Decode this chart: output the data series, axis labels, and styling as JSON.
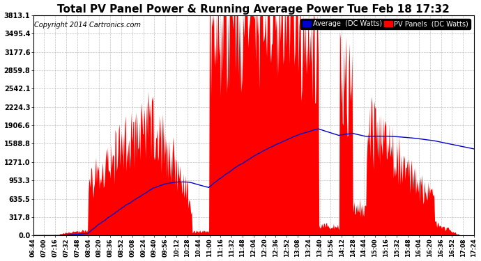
{
  "title": "Total PV Panel Power & Running Average Power Tue Feb 18 17:32",
  "copyright": "Copyright 2014 Cartronics.com",
  "y_max": 3813.1,
  "y_ticks": [
    0.0,
    317.8,
    635.5,
    953.3,
    1271.0,
    1588.8,
    1906.6,
    2224.3,
    2542.1,
    2859.8,
    3177.6,
    3495.4,
    3813.1
  ],
  "legend_avg_label": "Average  (DC Watts)",
  "legend_pv_label": "PV Panels  (DC Watts)",
  "avg_color": "#0000cc",
  "pv_color": "#ff0000",
  "background_color": "#ffffff",
  "grid_color": "#b0b0b0",
  "title_fontsize": 11,
  "copyright_fontsize": 7,
  "legend_fontsize": 7
}
